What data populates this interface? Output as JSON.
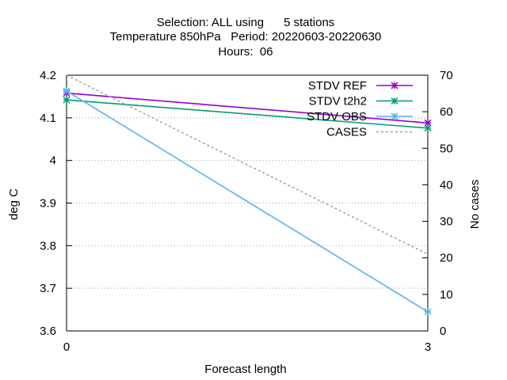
{
  "chart_data": {
    "type": "line",
    "title": {
      "line1": "Selection: ALL using      5 stations",
      "line2": "Temperature 850hPa   Period: 20220603-20220630",
      "line3": "Hours:  06"
    },
    "xlabel": "Forecast length",
    "ylabel": "deg C",
    "y2label": "No cases",
    "x": [
      0,
      3
    ],
    "xlim": [
      0,
      3
    ],
    "xticks": [
      "0",
      "3"
    ],
    "ylim": [
      3.6,
      4.2
    ],
    "yticks": [
      "3.6",
      "3.7",
      "3.8",
      "3.9",
      "4",
      "4.1",
      "4.2"
    ],
    "y2lim": [
      0,
      70
    ],
    "y2ticks": [
      "0",
      "10",
      "20",
      "30",
      "40",
      "50",
      "60",
      "70"
    ],
    "grid": "horizontal",
    "legend_position": "top-right",
    "series": [
      {
        "name": "STDV REF",
        "axis": "y1",
        "values": [
          4.158,
          4.088
        ],
        "color": "#9400d3",
        "style": "line-x"
      },
      {
        "name": "STDV t2h2",
        "axis": "y1",
        "values": [
          4.142,
          4.076
        ],
        "color": "#009e73",
        "style": "line-x"
      },
      {
        "name": "STDV OBS",
        "axis": "y1",
        "values": [
          4.163,
          3.645
        ],
        "color": "#56b4e9",
        "style": "line-x"
      },
      {
        "name": "CASES",
        "axis": "y2",
        "values": [
          70,
          21
        ],
        "color": "#a0a0a0",
        "style": "dashed"
      }
    ]
  }
}
